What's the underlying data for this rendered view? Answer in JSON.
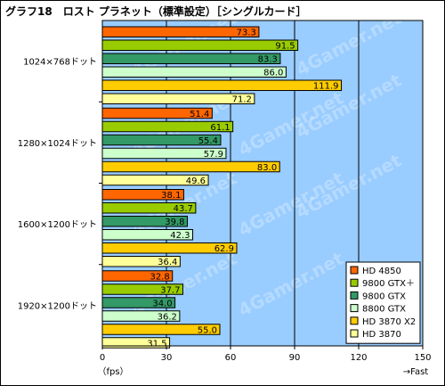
{
  "title": "グラフ18　ロスト プラネット（標準設定）［シングルカード］",
  "x_unit_label": "（fps）",
  "x_fast_label": "→Fast",
  "watermark": "4Gamer.net",
  "chart_data": {
    "type": "bar",
    "orientation": "horizontal",
    "title": "グラフ18　ロスト プラネット（標準設定）［シングルカード］",
    "categories": [
      "1024×768ドット",
      "1280×1024ドット",
      "1600×1200ドット",
      "1920×1200ドット"
    ],
    "series": [
      {
        "name": "HD 4850",
        "color": "#ff6600",
        "values": [
          73.3,
          51.4,
          38.1,
          32.8
        ]
      },
      {
        "name": "9800 GTX＋",
        "color": "#99cc00",
        "values": [
          91.5,
          61.1,
          43.7,
          37.7
        ]
      },
      {
        "name": "9800 GTX",
        "color": "#339966",
        "values": [
          83.3,
          55.4,
          39.8,
          34.0
        ]
      },
      {
        "name": "8800 GTX",
        "color": "#ccffcc",
        "values": [
          86.0,
          57.9,
          42.3,
          36.2
        ]
      },
      {
        "name": "HD 3870 X2",
        "color": "#ffcc00",
        "values": [
          111.9,
          83.0,
          62.9,
          55.0
        ]
      },
      {
        "name": "HD 3870",
        "color": "#ffff99",
        "values": [
          71.2,
          49.6,
          36.4,
          31.5
        ]
      }
    ],
    "xlim": [
      0,
      150
    ],
    "xticks": [
      0,
      30,
      60,
      90,
      120,
      150
    ],
    "xlabel": "（fps）",
    "grid": true,
    "legend": "bottom-right",
    "plot_background": "#99ccff"
  }
}
